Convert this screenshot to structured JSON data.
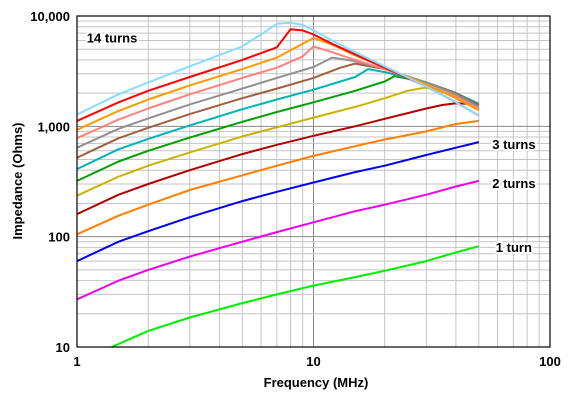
{
  "chart_data": {
    "type": "line",
    "title": "",
    "xlabel": "Frequency (MHz)",
    "ylabel": "Impedance (Ohms)",
    "x_scale": "log",
    "y_scale": "log",
    "xlim": [
      1,
      100
    ],
    "ylim": [
      10,
      10000
    ],
    "x_ticks": [
      {
        "value": 1,
        "label": "1"
      },
      {
        "value": 10,
        "label": "10"
      },
      {
        "value": 100,
        "label": "100"
      }
    ],
    "y_ticks": [
      {
        "value": 10,
        "label": "10"
      },
      {
        "value": 100,
        "label": "100"
      },
      {
        "value": 1000,
        "label": "1,000"
      },
      {
        "value": 10000,
        "label": "10,000"
      }
    ],
    "grid": true,
    "legend": "none",
    "annotations": [
      {
        "text": "14 turns",
        "x": 1.1,
        "y": 6400
      },
      {
        "text": "3 turns",
        "x": 57,
        "y": 690
      },
      {
        "text": "2 turns",
        "x": 57,
        "y": 308
      },
      {
        "text": "1 turn",
        "x": 59,
        "y": 81
      }
    ],
    "series": [
      {
        "color": "#00ee00",
        "points": [
          [
            1.4,
            10
          ],
          [
            2,
            14
          ],
          [
            3,
            18.5
          ],
          [
            5,
            25
          ],
          [
            7,
            30
          ],
          [
            10,
            36
          ],
          [
            15,
            43
          ],
          [
            20,
            49
          ],
          [
            30,
            60
          ],
          [
            40,
            72
          ],
          [
            50,
            82
          ]
        ]
      },
      {
        "color": "#ee00ee",
        "points": [
          [
            1,
            27
          ],
          [
            1.5,
            40
          ],
          [
            2,
            50
          ],
          [
            3,
            66
          ],
          [
            5,
            90
          ],
          [
            7,
            110
          ],
          [
            10,
            135
          ],
          [
            15,
            170
          ],
          [
            20,
            195
          ],
          [
            30,
            240
          ],
          [
            40,
            285
          ],
          [
            50,
            320
          ]
        ]
      },
      {
        "color": "#0000ee",
        "points": [
          [
            1,
            60
          ],
          [
            1.5,
            90
          ],
          [
            2,
            112
          ],
          [
            3,
            150
          ],
          [
            5,
            210
          ],
          [
            7,
            255
          ],
          [
            10,
            310
          ],
          [
            15,
            385
          ],
          [
            20,
            440
          ],
          [
            30,
            550
          ],
          [
            40,
            640
          ],
          [
            50,
            720
          ]
        ]
      },
      {
        "color": "#ff7f00",
        "points": [
          [
            1,
            105
          ],
          [
            1.5,
            155
          ],
          [
            2,
            195
          ],
          [
            3,
            265
          ],
          [
            5,
            360
          ],
          [
            7,
            440
          ],
          [
            10,
            540
          ],
          [
            15,
            660
          ],
          [
            20,
            760
          ],
          [
            30,
            900
          ],
          [
            40,
            1050
          ],
          [
            50,
            1120
          ]
        ]
      },
      {
        "color": "#b00000",
        "points": [
          [
            1,
            160
          ],
          [
            1.5,
            240
          ],
          [
            2,
            300
          ],
          [
            3,
            400
          ],
          [
            5,
            560
          ],
          [
            7,
            680
          ],
          [
            10,
            820
          ],
          [
            15,
            1000
          ],
          [
            20,
            1170
          ],
          [
            30,
            1450
          ],
          [
            35,
            1560
          ],
          [
            40,
            1620
          ],
          [
            50,
            1580
          ]
        ]
      },
      {
        "color": "#c8b400",
        "points": [
          [
            1,
            235
          ],
          [
            1.5,
            350
          ],
          [
            2,
            440
          ],
          [
            3,
            580
          ],
          [
            5,
            810
          ],
          [
            7,
            980
          ],
          [
            10,
            1200
          ],
          [
            15,
            1500
          ],
          [
            20,
            1800
          ],
          [
            25,
            2100
          ],
          [
            28,
            2200
          ],
          [
            30,
            2250
          ],
          [
            40,
            1900
          ],
          [
            50,
            1550
          ]
        ]
      },
      {
        "color": "#00a000",
        "points": [
          [
            1,
            320
          ],
          [
            1.5,
            480
          ],
          [
            2,
            600
          ],
          [
            3,
            790
          ],
          [
            5,
            1100
          ],
          [
            7,
            1350
          ],
          [
            10,
            1650
          ],
          [
            15,
            2100
          ],
          [
            20,
            2550
          ],
          [
            22,
            2850
          ],
          [
            25,
            2700
          ],
          [
            30,
            2500
          ],
          [
            40,
            2000
          ],
          [
            50,
            1600
          ]
        ]
      },
      {
        "color": "#00b4b4",
        "points": [
          [
            1,
            410
          ],
          [
            1.5,
            620
          ],
          [
            2,
            770
          ],
          [
            3,
            1020
          ],
          [
            5,
            1430
          ],
          [
            7,
            1750
          ],
          [
            10,
            2150
          ],
          [
            15,
            2800
          ],
          [
            17,
            3300
          ],
          [
            20,
            3100
          ],
          [
            30,
            2500
          ],
          [
            40,
            2000
          ],
          [
            50,
            1600
          ]
        ]
      },
      {
        "color": "#a06040",
        "points": [
          [
            1,
            520
          ],
          [
            1.5,
            780
          ],
          [
            2,
            970
          ],
          [
            3,
            1290
          ],
          [
            5,
            1800
          ],
          [
            7,
            2200
          ],
          [
            10,
            2750
          ],
          [
            13,
            3400
          ],
          [
            15,
            3700
          ],
          [
            20,
            3300
          ],
          [
            30,
            2500
          ],
          [
            40,
            2000
          ],
          [
            50,
            1550
          ]
        ]
      },
      {
        "color": "#909090",
        "points": [
          [
            1,
            640
          ],
          [
            1.5,
            950
          ],
          [
            2,
            1180
          ],
          [
            3,
            1580
          ],
          [
            5,
            2200
          ],
          [
            7,
            2750
          ],
          [
            10,
            3450
          ],
          [
            12,
            4200
          ],
          [
            15,
            3900
          ],
          [
            20,
            3300
          ],
          [
            30,
            2500
          ],
          [
            40,
            1950
          ],
          [
            50,
            1500
          ]
        ]
      },
      {
        "color": "#ff8080",
        "points": [
          [
            1,
            780
          ],
          [
            1.5,
            1150
          ],
          [
            2,
            1450
          ],
          [
            3,
            1950
          ],
          [
            5,
            2750
          ],
          [
            7,
            3400
          ],
          [
            9,
            4300
          ],
          [
            10,
            5300
          ],
          [
            12,
            4700
          ],
          [
            15,
            4000
          ],
          [
            20,
            3300
          ],
          [
            30,
            2400
          ],
          [
            40,
            1850
          ],
          [
            50,
            1450
          ]
        ]
      },
      {
        "color": "#ff9900",
        "points": [
          [
            1,
            930
          ],
          [
            1.5,
            1380
          ],
          [
            2,
            1750
          ],
          [
            3,
            2350
          ],
          [
            5,
            3300
          ],
          [
            7,
            4200
          ],
          [
            9,
            5600
          ],
          [
            10,
            6300
          ],
          [
            12,
            5500
          ],
          [
            15,
            4400
          ],
          [
            20,
            3400
          ],
          [
            30,
            2400
          ],
          [
            40,
            1800
          ],
          [
            50,
            1400
          ]
        ]
      },
      {
        "color": "#ff0000",
        "points": [
          [
            1,
            1120
          ],
          [
            1.5,
            1650
          ],
          [
            2,
            2100
          ],
          [
            3,
            2800
          ],
          [
            5,
            4000
          ],
          [
            7,
            5200
          ],
          [
            8,
            7600
          ],
          [
            9,
            7400
          ],
          [
            10,
            6800
          ],
          [
            12,
            5600
          ],
          [
            15,
            4500
          ],
          [
            20,
            3400
          ],
          [
            30,
            2300
          ],
          [
            40,
            1650
          ],
          [
            50,
            1250
          ]
        ]
      },
      {
        "color": "#88ddff",
        "points": [
          [
            1,
            1280
          ],
          [
            1.5,
            1950
          ],
          [
            2,
            2500
          ],
          [
            3,
            3500
          ],
          [
            5,
            5300
          ],
          [
            6,
            6800
          ],
          [
            7,
            8500
          ],
          [
            8,
            8700
          ],
          [
            9,
            8300
          ],
          [
            10,
            7400
          ],
          [
            12,
            6000
          ],
          [
            15,
            4700
          ],
          [
            20,
            3500
          ],
          [
            30,
            2300
          ],
          [
            40,
            1650
          ],
          [
            50,
            1250
          ]
        ]
      }
    ]
  }
}
